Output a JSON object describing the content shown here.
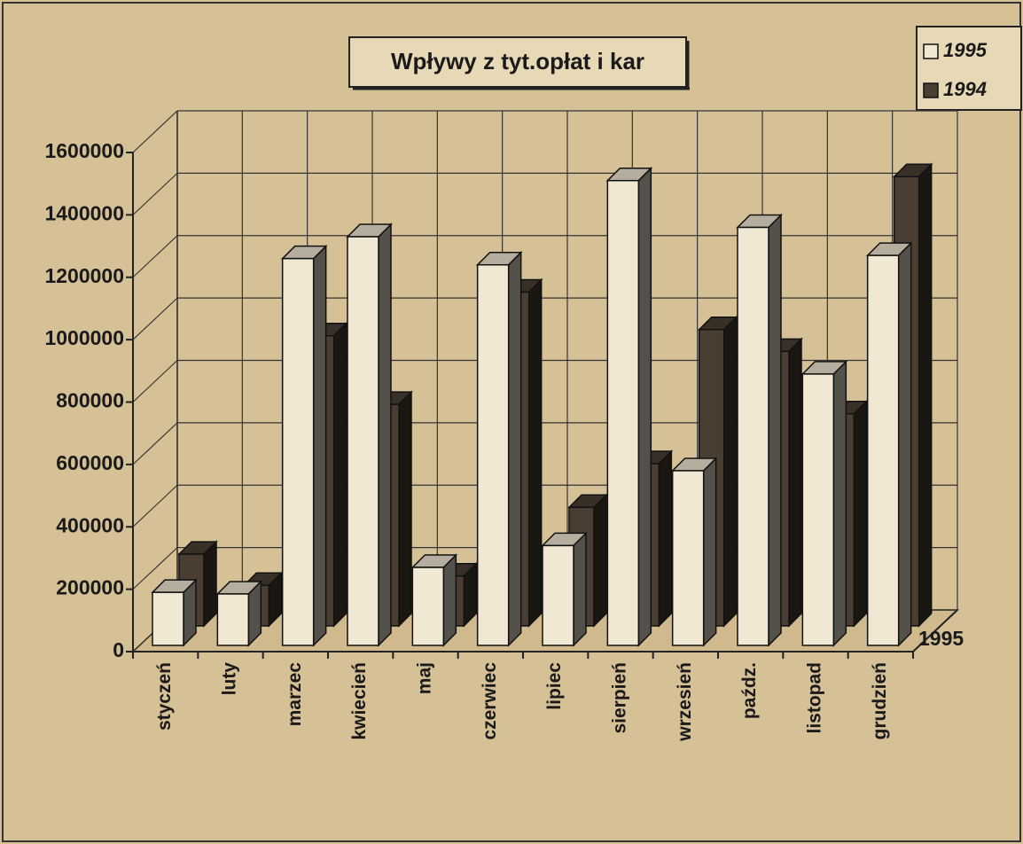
{
  "chart_data": {
    "type": "bar3d",
    "title": "Wpływy z tyt.opłat i kar",
    "categories": [
      "styczeń",
      "luty",
      "marzec",
      "kwiecień",
      "maj",
      "czerwiec",
      "lipiec",
      "sierpień",
      "wrzesień",
      "paźdz.",
      "listopad",
      "grudzień"
    ],
    "series": [
      {
        "name": "1995",
        "color": "#f1e8d3",
        "values": [
          170000,
          165000,
          1240000,
          1310000,
          250000,
          1220000,
          320000,
          1490000,
          560000,
          1340000,
          870000,
          1250000
        ]
      },
      {
        "name": "1994",
        "color": "#4a3e33",
        "values": [
          230000,
          130000,
          930000,
          710000,
          160000,
          1070000,
          380000,
          520000,
          950000,
          880000,
          680000,
          1440000
        ]
      }
    ],
    "ylim": [
      0,
      1600000
    ],
    "yticks": [
      0,
      200000,
      400000,
      600000,
      800000,
      1000000,
      1200000,
      1400000,
      1600000
    ],
    "grid": true,
    "legend": "top-right"
  }
}
